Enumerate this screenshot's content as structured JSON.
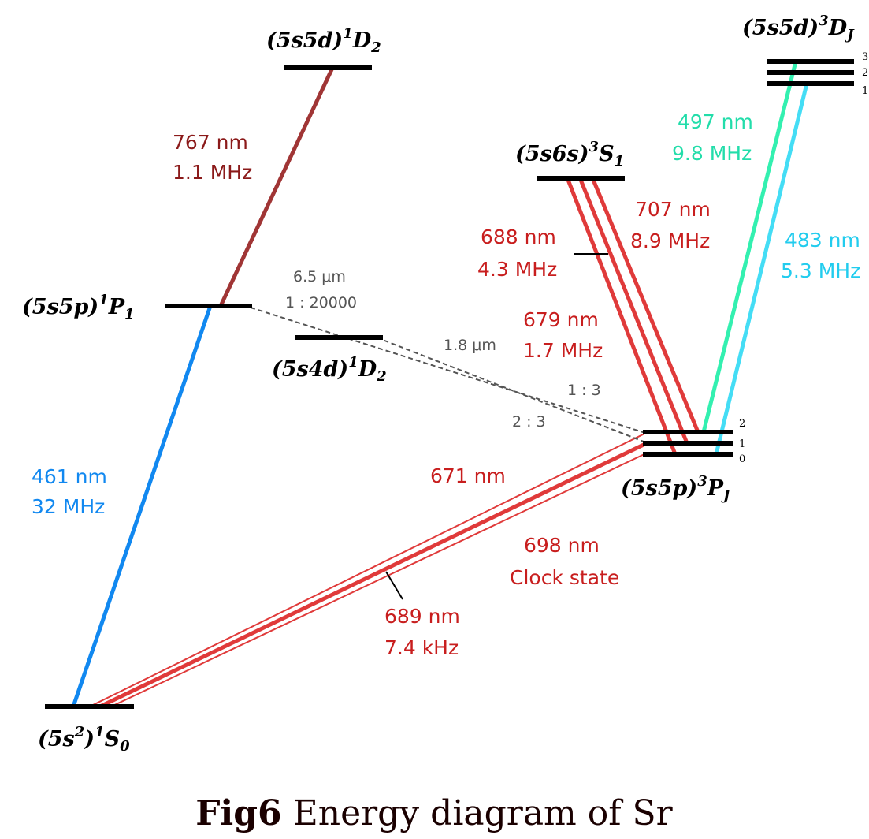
{
  "colors": {
    "level": "#000000",
    "blue_461": "#1188f0",
    "brown_767": "#a03535",
    "red_lines": "#e03a3a",
    "red_text": "#c81e1e",
    "green_497": "#33f0b0",
    "cyan_483": "#44ddf5",
    "text_767": "#8b1a1a",
    "text_461": "#1188f0",
    "text_497": "#22ddaa",
    "text_483": "#22ccee",
    "gray": "#555555"
  },
  "states": {
    "ground": {
      "config": "(5s",
      "config_sup": "2",
      "config_close": ")",
      "mult": "1",
      "term": "S",
      "sub": "0"
    },
    "p1": {
      "config": "(5s5p)",
      "mult": "1",
      "term": "P",
      "sub": "1"
    },
    "d2_upper": {
      "config": "(5s5d)",
      "mult": "1",
      "term": "D",
      "sub": "2"
    },
    "d2_lower": {
      "config": "(5s4d)",
      "mult": "1",
      "term": "D",
      "sub": "2"
    },
    "s1": {
      "config": "(5s6s)",
      "mult": "3",
      "term": "S",
      "sub": "1"
    },
    "pj": {
      "config": "(5s5p)",
      "mult": "3",
      "term": "P",
      "sub": "J",
      "sublevels": [
        "2",
        "1",
        "0"
      ]
    },
    "dj": {
      "config": "(5s5d)",
      "mult": "3",
      "term": "D",
      "sub": "J",
      "sublevels": [
        "3",
        "2",
        "1"
      ]
    }
  },
  "transitions": {
    "t461": {
      "wavelength": "461 nm",
      "linewidth": "32 MHz"
    },
    "t767": {
      "wavelength": "767 nm",
      "linewidth": "1.1 MHz"
    },
    "t689": {
      "wavelength": "689 nm",
      "linewidth": "7.4 kHz"
    },
    "t698": {
      "wavelength": "698 nm",
      "note": "Clock state"
    },
    "t671": {
      "wavelength": "671 nm"
    },
    "t688": {
      "wavelength": "688 nm",
      "linewidth": "4.3 MHz"
    },
    "t707": {
      "wavelength": "707 nm",
      "linewidth": "8.9 MHz"
    },
    "t679": {
      "wavelength": "679 nm",
      "linewidth": "1.7 MHz"
    },
    "t497": {
      "wavelength": "497 nm",
      "linewidth": "9.8 MHz"
    },
    "t483": {
      "wavelength": "483 nm",
      "linewidth": "5.3 MHz"
    },
    "decay_65": {
      "wavelength": "6.5 μm",
      "ratio": "1 : 20000"
    },
    "decay_18": {
      "wavelength": "1.8 μm",
      "ratio_a": "1 : 3",
      "ratio_b": "2 : 3"
    }
  },
  "caption": {
    "bold": "Fig6",
    "text": " Energy diagram of Sr"
  }
}
